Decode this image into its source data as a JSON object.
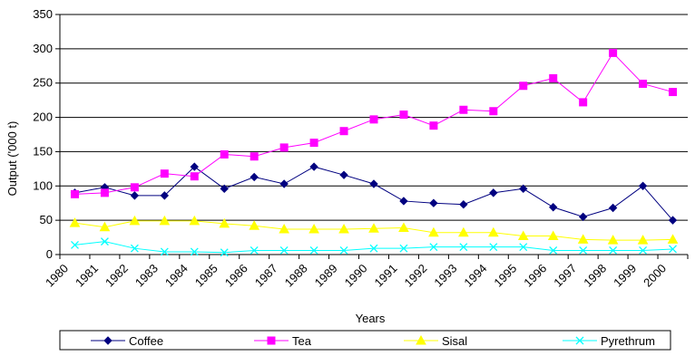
{
  "chart_data": {
    "type": "line",
    "xlabel": "Years",
    "ylabel": "Output ('000 t)",
    "ylim": [
      0,
      350
    ],
    "yticks": [
      0,
      50,
      100,
      150,
      200,
      250,
      300,
      350
    ],
    "categories": [
      "1980",
      "1981",
      "1982",
      "1983",
      "1984",
      "1985",
      "1986",
      "1987",
      "1988",
      "1989",
      "1990",
      "1991",
      "1992",
      "1993",
      "1994",
      "1995",
      "1996",
      "1997",
      "1998",
      "1999",
      "2000"
    ],
    "grid": "horizontal",
    "legend_position": "bottom",
    "series": [
      {
        "name": "Coffee",
        "color": "#000080",
        "marker": "diamond",
        "values": [
          90,
          98,
          86,
          86,
          128,
          96,
          113,
          103,
          128,
          116,
          103,
          78,
          75,
          73,
          90,
          96,
          69,
          55,
          68,
          100,
          50
        ]
      },
      {
        "name": "Tea",
        "color": "#FF00FF",
        "marker": "square",
        "values": [
          88,
          90,
          98,
          118,
          114,
          146,
          143,
          156,
          163,
          180,
          197,
          204,
          188,
          211,
          209,
          246,
          257,
          222,
          294,
          249,
          237
        ]
      },
      {
        "name": "Sisal",
        "color": "#FFFF00",
        "marker": "triangle",
        "values": [
          46,
          40,
          49,
          49,
          49,
          45,
          42,
          37,
          37,
          37,
          38,
          39,
          32,
          32,
          32,
          27,
          27,
          22,
          21,
          21,
          22
        ]
      },
      {
        "name": "Pyrethrum",
        "color": "#00FFFF",
        "marker": "x",
        "values": [
          14,
          19,
          9,
          4,
          4,
          3,
          6,
          6,
          6,
          6,
          9,
          9,
          11,
          11,
          11,
          11,
          6,
          6,
          6,
          6,
          8
        ]
      }
    ]
  }
}
